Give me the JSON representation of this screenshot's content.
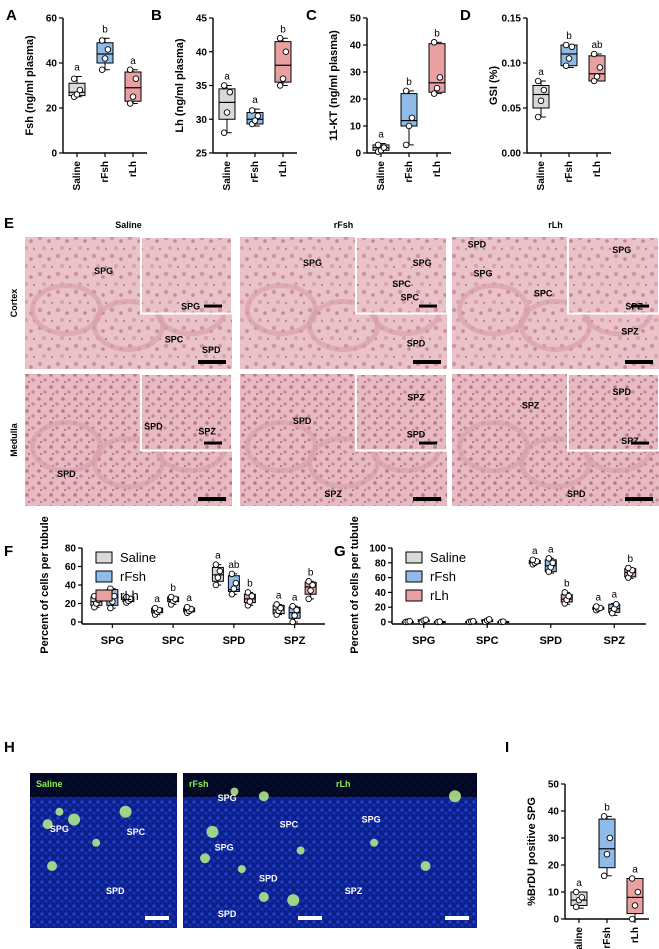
{
  "panel_labels": {
    "A": "A",
    "B": "B",
    "C": "C",
    "D": "D",
    "E": "E",
    "F": "F",
    "G": "G",
    "H": "H",
    "I": "I"
  },
  "colors": {
    "saline": "#d9d9d9",
    "rfsh": "#8fbbe8",
    "rlh": "#e8a0a0",
    "stain_bg": "#ecc6cb",
    "stain_dark": "#c97d8c",
    "fluor_bg": "#0a1b6a",
    "fluor_green": "#b9f28a"
  },
  "chart_data": [
    {
      "id": "A",
      "type": "box",
      "ylabel": "Fsh (ng/ml plasma)",
      "ylim": [
        0,
        60
      ],
      "yticks": [
        "0",
        "20",
        "40",
        "60"
      ],
      "categories": [
        "Saline",
        "rFsh",
        "rLh"
      ],
      "boxes": [
        {
          "min": 25,
          "q1": 25.5,
          "median": 27,
          "q3": 31,
          "max": 34,
          "points": [
            25,
            26,
            28,
            33
          ]
        },
        {
          "min": 37,
          "q1": 40,
          "median": 44,
          "q3": 49,
          "max": 51,
          "points": [
            37,
            42,
            46,
            50
          ]
        },
        {
          "min": 22,
          "q1": 23,
          "median": 29,
          "q3": 36,
          "max": 37,
          "points": [
            22,
            25,
            33,
            37
          ]
        }
      ],
      "letters": [
        "a",
        "b",
        "a"
      ]
    },
    {
      "id": "B",
      "type": "box",
      "ylabel": "Lh (ng/ml plasma)",
      "ylim": [
        25,
        45
      ],
      "yticks": [
        "25",
        "30",
        "35",
        "40",
        "45"
      ],
      "categories": [
        "Saline",
        "rFsh",
        "rLh"
      ],
      "boxes": [
        {
          "min": 28,
          "q1": 30,
          "median": 32.5,
          "q3": 34.5,
          "max": 35,
          "points": [
            28,
            31,
            34,
            35
          ]
        },
        {
          "min": 29,
          "q1": 29.3,
          "median": 30,
          "q3": 31,
          "max": 31.5,
          "points": [
            29.3,
            29.8,
            30.5,
            31.3
          ]
        },
        {
          "min": 35,
          "q1": 35.5,
          "median": 38,
          "q3": 41.5,
          "max": 42,
          "points": [
            35,
            36,
            40,
            42
          ]
        }
      ],
      "letters": [
        "a",
        "a",
        "b"
      ]
    },
    {
      "id": "C",
      "type": "box",
      "ylabel": "11-KT (ng/ml plasma)",
      "ylim": [
        0,
        50
      ],
      "yticks": [
        "0",
        "10",
        "20",
        "30",
        "40",
        "50"
      ],
      "categories": [
        "Saline",
        "rFsh",
        "rLh"
      ],
      "boxes": [
        {
          "min": 0,
          "q1": 1,
          "median": 2,
          "q3": 3,
          "max": 3.5,
          "points": [
            0.5,
            1,
            2,
            3
          ]
        },
        {
          "min": 3,
          "q1": 10,
          "median": 12,
          "q3": 22,
          "max": 23,
          "points": [
            3,
            10,
            13,
            23
          ]
        },
        {
          "min": 22,
          "q1": 22.5,
          "median": 26,
          "q3": 40.5,
          "max": 41,
          "points": [
            22,
            24,
            28,
            41
          ]
        }
      ],
      "letters": [
        "a",
        "b",
        "b"
      ]
    },
    {
      "id": "D",
      "type": "box",
      "ylabel": "GSI (%)",
      "ylim": [
        0,
        0.15
      ],
      "yticks": [
        "0.00",
        "0.05",
        "0.10",
        "0.15"
      ],
      "categories": [
        "Saline",
        "rFsh",
        "rLh"
      ],
      "boxes": [
        {
          "min": 0.04,
          "q1": 0.05,
          "median": 0.065,
          "q3": 0.075,
          "max": 0.08,
          "points": [
            0.04,
            0.058,
            0.07,
            0.08
          ]
        },
        {
          "min": 0.095,
          "q1": 0.097,
          "median": 0.11,
          "q3": 0.12,
          "max": 0.12,
          "points": [
            0.097,
            0.105,
            0.118,
            0.12
          ]
        },
        {
          "min": 0.08,
          "q1": 0.08,
          "median": 0.088,
          "q3": 0.108,
          "max": 0.11,
          "points": [
            0.08,
            0.085,
            0.095,
            0.11
          ]
        }
      ],
      "letters": [
        "a",
        "b",
        "ab"
      ]
    },
    {
      "id": "F",
      "type": "grouped-box",
      "ylabel": "Percent of cells per tubule",
      "ylim": [
        0,
        80
      ],
      "yticks": [
        "0",
        "20",
        "40",
        "60",
        "80"
      ],
      "categories": [
        "SPG",
        "SPC",
        "SPD",
        "SPZ"
      ],
      "legend": [
        "Saline",
        "rFsh",
        "rLh"
      ],
      "legend_position": "top",
      "series": [
        {
          "name": "Saline",
          "boxes": [
            {
              "min": 16,
              "q1": 18,
              "median": 22,
              "q3": 27,
              "max": 28,
              "points": [
                16,
                20,
                24,
                28
              ]
            },
            {
              "min": 8,
              "q1": 10,
              "median": 12,
              "q3": 15,
              "max": 15,
              "points": [
                8,
                11,
                13,
                15
              ]
            },
            {
              "min": 40,
              "q1": 44,
              "median": 51,
              "q3": 59,
              "max": 62,
              "points": [
                40,
                48,
                55,
                62
              ]
            },
            {
              "min": 8,
              "q1": 9,
              "median": 13,
              "q3": 18,
              "max": 19,
              "points": [
                8,
                12,
                15,
                19
              ]
            }
          ]
        },
        {
          "name": "rFsh",
          "boxes": [
            {
              "min": 15,
              "q1": 18,
              "median": 27,
              "q3": 35,
              "max": 36,
              "points": [
                15,
                22,
                28,
                36
              ]
            },
            {
              "min": 19,
              "q1": 22,
              "median": 24,
              "q3": 27,
              "max": 27,
              "points": [
                19,
                23,
                25,
                27
              ]
            },
            {
              "min": 30,
              "q1": 33,
              "median": 35,
              "q3": 50,
              "max": 52,
              "points": [
                30,
                36,
                42,
                52
              ]
            },
            {
              "min": 0,
              "q1": 4,
              "median": 10,
              "q3": 16,
              "max": 17,
              "points": [
                0,
                7,
                13,
                17
              ]
            }
          ]
        },
        {
          "name": "rLh",
          "boxes": [
            {
              "min": 21,
              "q1": 22,
              "median": 24,
              "q3": 27,
              "max": 28,
              "points": [
                21,
                23,
                25,
                27
              ]
            },
            {
              "min": 10,
              "q1": 11,
              "median": 13,
              "q3": 15,
              "max": 16,
              "points": [
                10,
                12,
                14,
                16
              ]
            },
            {
              "min": 18,
              "q1": 21,
              "median": 25,
              "q3": 30,
              "max": 32,
              "points": [
                18,
                22,
                28,
                32
              ]
            },
            {
              "min": 25,
              "q1": 30,
              "median": 38,
              "q3": 43,
              "max": 44,
              "points": [
                25,
                34,
                40,
                44
              ]
            }
          ]
        }
      ],
      "letters": [
        [
          "",
          "",
          ""
        ],
        [
          "a",
          "b",
          "a"
        ],
        [
          "a",
          "ab",
          "b"
        ],
        [
          "a",
          "a",
          "b"
        ]
      ]
    },
    {
      "id": "G",
      "type": "grouped-box",
      "ylabel": "Percent of cells per tubule",
      "ylim": [
        0,
        100
      ],
      "yticks": [
        "0",
        "20",
        "40",
        "60",
        "80",
        "100"
      ],
      "categories": [
        "SPG",
        "SPC",
        "SPD",
        "SPZ"
      ],
      "legend": [
        "Saline",
        "rFsh",
        "rLh"
      ],
      "legend_position": "top",
      "series": [
        {
          "name": "Saline",
          "boxes": [
            {
              "min": 0,
              "q1": 0,
              "median": 0.3,
              "q3": 0.6,
              "max": 1,
              "points": [
                0,
                0.5,
                1
              ]
            },
            {
              "min": 0,
              "q1": 0,
              "median": 0.3,
              "q3": 0.6,
              "max": 1,
              "points": [
                0,
                0.5,
                1
              ]
            },
            {
              "min": 78,
              "q1": 79,
              "median": 81,
              "q3": 83,
              "max": 84,
              "points": [
                78,
                80,
                82,
                84
              ]
            },
            {
              "min": 16,
              "q1": 17,
              "median": 18,
              "q3": 20,
              "max": 21,
              "points": [
                16,
                18,
                19,
                21
              ]
            }
          ]
        },
        {
          "name": "rFsh",
          "boxes": [
            {
              "min": 0,
              "q1": 0.5,
              "median": 1.5,
              "q3": 3,
              "max": 3.5,
              "points": [
                0,
                2,
                3
              ]
            },
            {
              "min": 0,
              "q1": 0.5,
              "median": 2,
              "q3": 3,
              "max": 4,
              "points": [
                0,
                2,
                3.5
              ]
            },
            {
              "min": 66,
              "q1": 68,
              "median": 76,
              "q3": 84,
              "max": 86,
              "points": [
                68,
                74,
                80,
                86
              ]
            },
            {
              "min": 9,
              "q1": 13,
              "median": 18,
              "q3": 24,
              "max": 25,
              "points": [
                12,
                18,
                24
              ]
            }
          ]
        },
        {
          "name": "rLh",
          "boxes": [
            {
              "min": 0,
              "q1": 0,
              "median": 0.3,
              "q3": 0.6,
              "max": 1,
              "points": [
                0,
                0.5
              ]
            },
            {
              "min": 0,
              "q1": 0,
              "median": 0.3,
              "q3": 0.6,
              "max": 1,
              "points": [
                0,
                0.5
              ]
            },
            {
              "min": 24,
              "q1": 27,
              "median": 31,
              "q3": 37,
              "max": 40,
              "points": [
                25,
                30,
                35,
                40
              ]
            },
            {
              "min": 59,
              "q1": 61,
              "median": 67,
              "q3": 72,
              "max": 73,
              "points": [
                60,
                66,
                70,
                73
              ]
            }
          ]
        }
      ],
      "letters": [
        [
          "",
          "",
          ""
        ],
        [
          "",
          "",
          ""
        ],
        [
          "a",
          "a",
          "b"
        ],
        [
          "a",
          "a",
          "b"
        ]
      ]
    },
    {
      "id": "I",
      "type": "box",
      "ylabel": "%BrDU positive SPG",
      "ylim": [
        0,
        50
      ],
      "yticks": [
        "0",
        "10",
        "20",
        "30",
        "40",
        "50"
      ],
      "categories": [
        "Saline",
        "rFsh",
        "rLh"
      ],
      "boxes": [
        {
          "min": 4,
          "q1": 5,
          "median": 7,
          "q3": 10,
          "max": 10,
          "points": [
            4.5,
            7,
            8,
            10
          ]
        },
        {
          "min": 16,
          "q1": 19,
          "median": 26,
          "q3": 37,
          "max": 38,
          "points": [
            16,
            24,
            30,
            38
          ]
        },
        {
          "min": 0,
          "q1": 2,
          "median": 8,
          "q3": 15,
          "max": 15,
          "points": [
            0,
            5,
            10,
            15
          ]
        }
      ],
      "letters": [
        "a",
        "b",
        "a"
      ]
    }
  ],
  "histology": {
    "columns": [
      "Saline",
      "rFsh",
      "rLh"
    ],
    "rows": [
      "Cortex",
      "Medulla"
    ],
    "labels": [
      [
        [
          "SPG",
          "SPG",
          "SPC",
          "SPD"
        ],
        [
          "SPG",
          "SPC",
          "SPG",
          "SPC",
          "SPD"
        ],
        [
          "SPD",
          "SPG",
          "SPG",
          "SPC",
          "SPZ",
          "SPZ"
        ]
      ],
      [
        [
          "SPD",
          "SPD",
          "SPZ"
        ],
        [
          "SPD",
          "SPZ",
          "SPD",
          "SPZ"
        ],
        [
          "SPZ",
          "SPD",
          "SPZ",
          "SPD"
        ]
      ]
    ]
  },
  "fluorescence": {
    "titles": [
      "Saline",
      "rFsh",
      "rLh"
    ],
    "labels": [
      [
        "SPG",
        "SPC",
        "SPD"
      ],
      [
        "SPG",
        "SPC",
        "SPG",
        "SPD",
        "SPD"
      ],
      [
        "SPG",
        "SPZ"
      ]
    ]
  }
}
